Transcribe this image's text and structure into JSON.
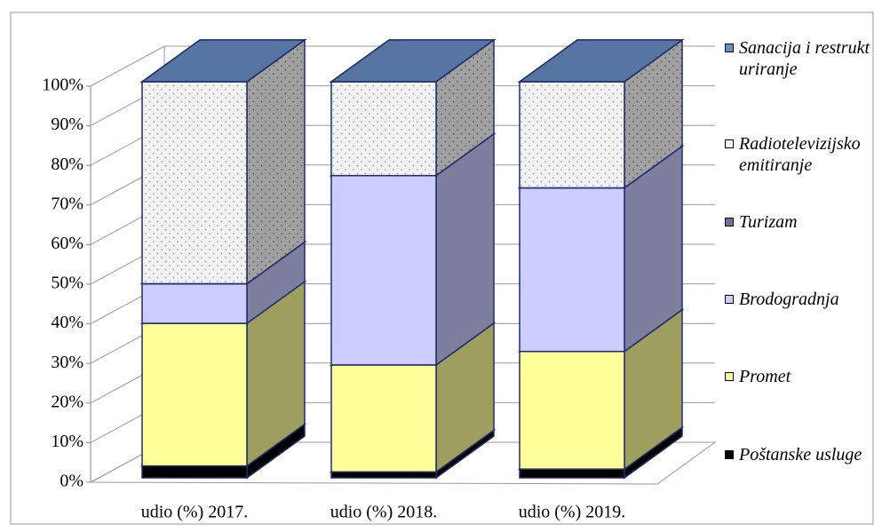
{
  "chart_data": {
    "type": "bar3d_stacked",
    "categories": [
      "udio (%) 2017.",
      "udio (%) 2018.",
      "udio (%) 2019."
    ],
    "series": [
      {
        "name": "Poštanske usluge",
        "color": "#000000",
        "values": [
          3,
          1.5,
          2.2
        ]
      },
      {
        "name": "Promet",
        "color": "#ffff99",
        "values": [
          36,
          27,
          29.7
        ]
      },
      {
        "name": "Brodogradnja",
        "color": "#ccccff",
        "values": [
          10,
          47.8,
          41.3
        ]
      },
      {
        "name": "Turizam",
        "color": "#7f6b9f",
        "values": [
          0,
          0,
          0
        ]
      },
      {
        "name": "Radiotelevizijsko emitiranje",
        "color": "#f2f2f2",
        "values": [
          51,
          23.7,
          26.8
        ]
      },
      {
        "name": "Sanacija i restrukturiranje",
        "color": "#6a8fc6",
        "values": [
          0,
          0,
          0
        ]
      }
    ],
    "ylim": [
      0,
      100
    ],
    "yticks": [
      {
        "value": 0,
        "label": "0%"
      },
      {
        "value": 10,
        "label": "10%"
      },
      {
        "value": 20,
        "label": "20%"
      },
      {
        "value": 30,
        "label": "30%"
      },
      {
        "value": 40,
        "label": "40%"
      },
      {
        "value": 50,
        "label": "50%"
      },
      {
        "value": 60,
        "label": "60%"
      },
      {
        "value": 70,
        "label": "70%"
      },
      {
        "value": 80,
        "label": "80%"
      },
      {
        "value": 90,
        "label": "90%"
      },
      {
        "value": 100,
        "label": "100%"
      }
    ],
    "grid": true,
    "legend": "right"
  }
}
